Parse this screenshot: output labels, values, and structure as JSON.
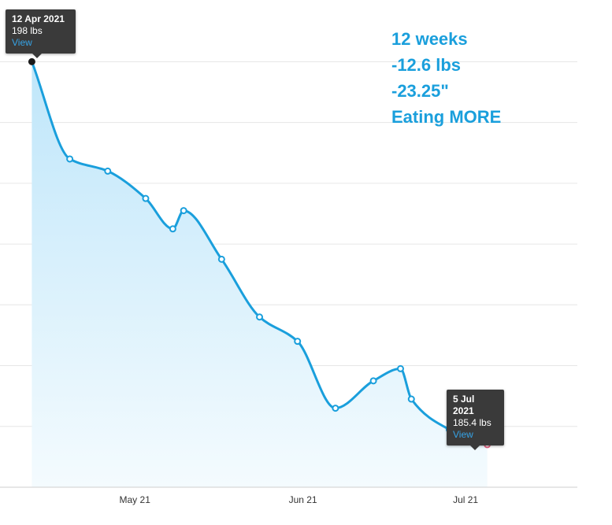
{
  "chart_data": {
    "type": "area",
    "title": "",
    "xlabel": "",
    "ylabel": "",
    "x_ticks": [
      "May 21",
      "Jun 21",
      "Jul 21"
    ],
    "y_grid": true,
    "x": [
      "2021-04-12",
      "2021-04-19",
      "2021-04-26",
      "2021-05-03",
      "2021-05-08",
      "2021-05-10",
      "2021-05-17",
      "2021-05-24",
      "2021-05-31",
      "2021-06-07",
      "2021-06-14",
      "2021-06-19",
      "2021-06-21",
      "2021-06-28",
      "2021-07-05"
    ],
    "series": [
      {
        "color": "#1a9fdc",
        "values": [
          198,
          194.8,
          194.4,
          193.5,
          192.5,
          193.1,
          191.5,
          189.6,
          188.8,
          186.6,
          187.5,
          187.9,
          186.9,
          185.9,
          185.4
        ]
      }
    ],
    "ylim": [
      184.0,
      199.9
    ],
    "markers": {
      "start_color": "#1a1a1a",
      "end_color": "#e06080"
    }
  },
  "annotation": {
    "lines": [
      "12 weeks",
      "-12.6 lbs",
      "-23.25\"",
      "Eating MORE"
    ],
    "color": "#1a9fdc"
  },
  "tooltips": {
    "start": {
      "date": "12 Apr 2021",
      "weight": "198 lbs",
      "link": "View"
    },
    "end": {
      "date": "5 Jul 2021",
      "weight": "185.4 lbs",
      "link": "View"
    }
  }
}
